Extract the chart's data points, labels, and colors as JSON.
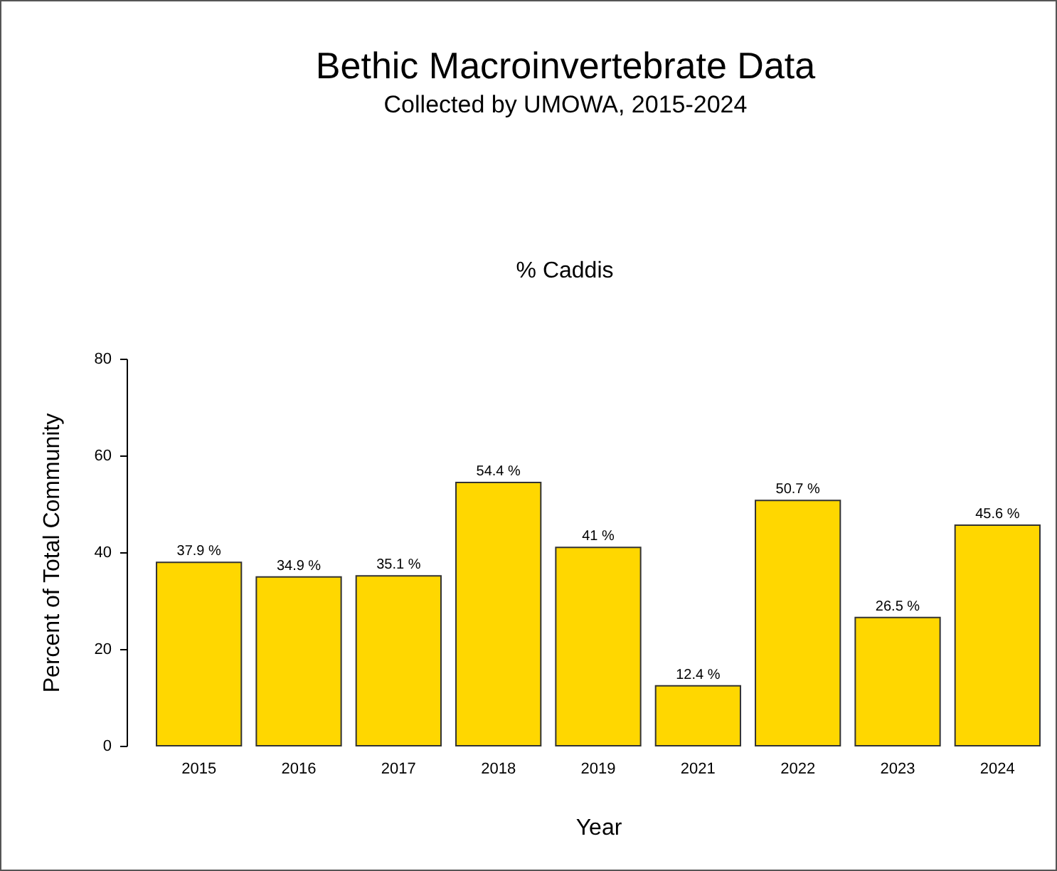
{
  "chart_data": {
    "type": "bar",
    "title": "Bethic Macroinvertebrate Data",
    "subtitle": "Collected by UMOWA, 2015-2024",
    "annotations": [
      "% Caddis"
    ],
    "xlabel": "Year",
    "ylabel": "Percent of Total Community",
    "categories": [
      "2015",
      "2016",
      "2017",
      "2018",
      "2019",
      "2021",
      "2022",
      "2023",
      "2024"
    ],
    "values": [
      37.9,
      34.9,
      35.1,
      54.4,
      41,
      12.4,
      50.7,
      26.5,
      45.6
    ],
    "value_labels": [
      "37.9 %",
      "34.9 %",
      "35.1 %",
      "54.4 %",
      "41 %",
      "12.4 %",
      "50.7 %",
      "26.5 %",
      "45.6 %"
    ],
    "color": "#ffd700",
    "ylim": [
      0,
      80
    ],
    "yticks": [
      0,
      20,
      40,
      60,
      80
    ],
    "grid": false
  }
}
